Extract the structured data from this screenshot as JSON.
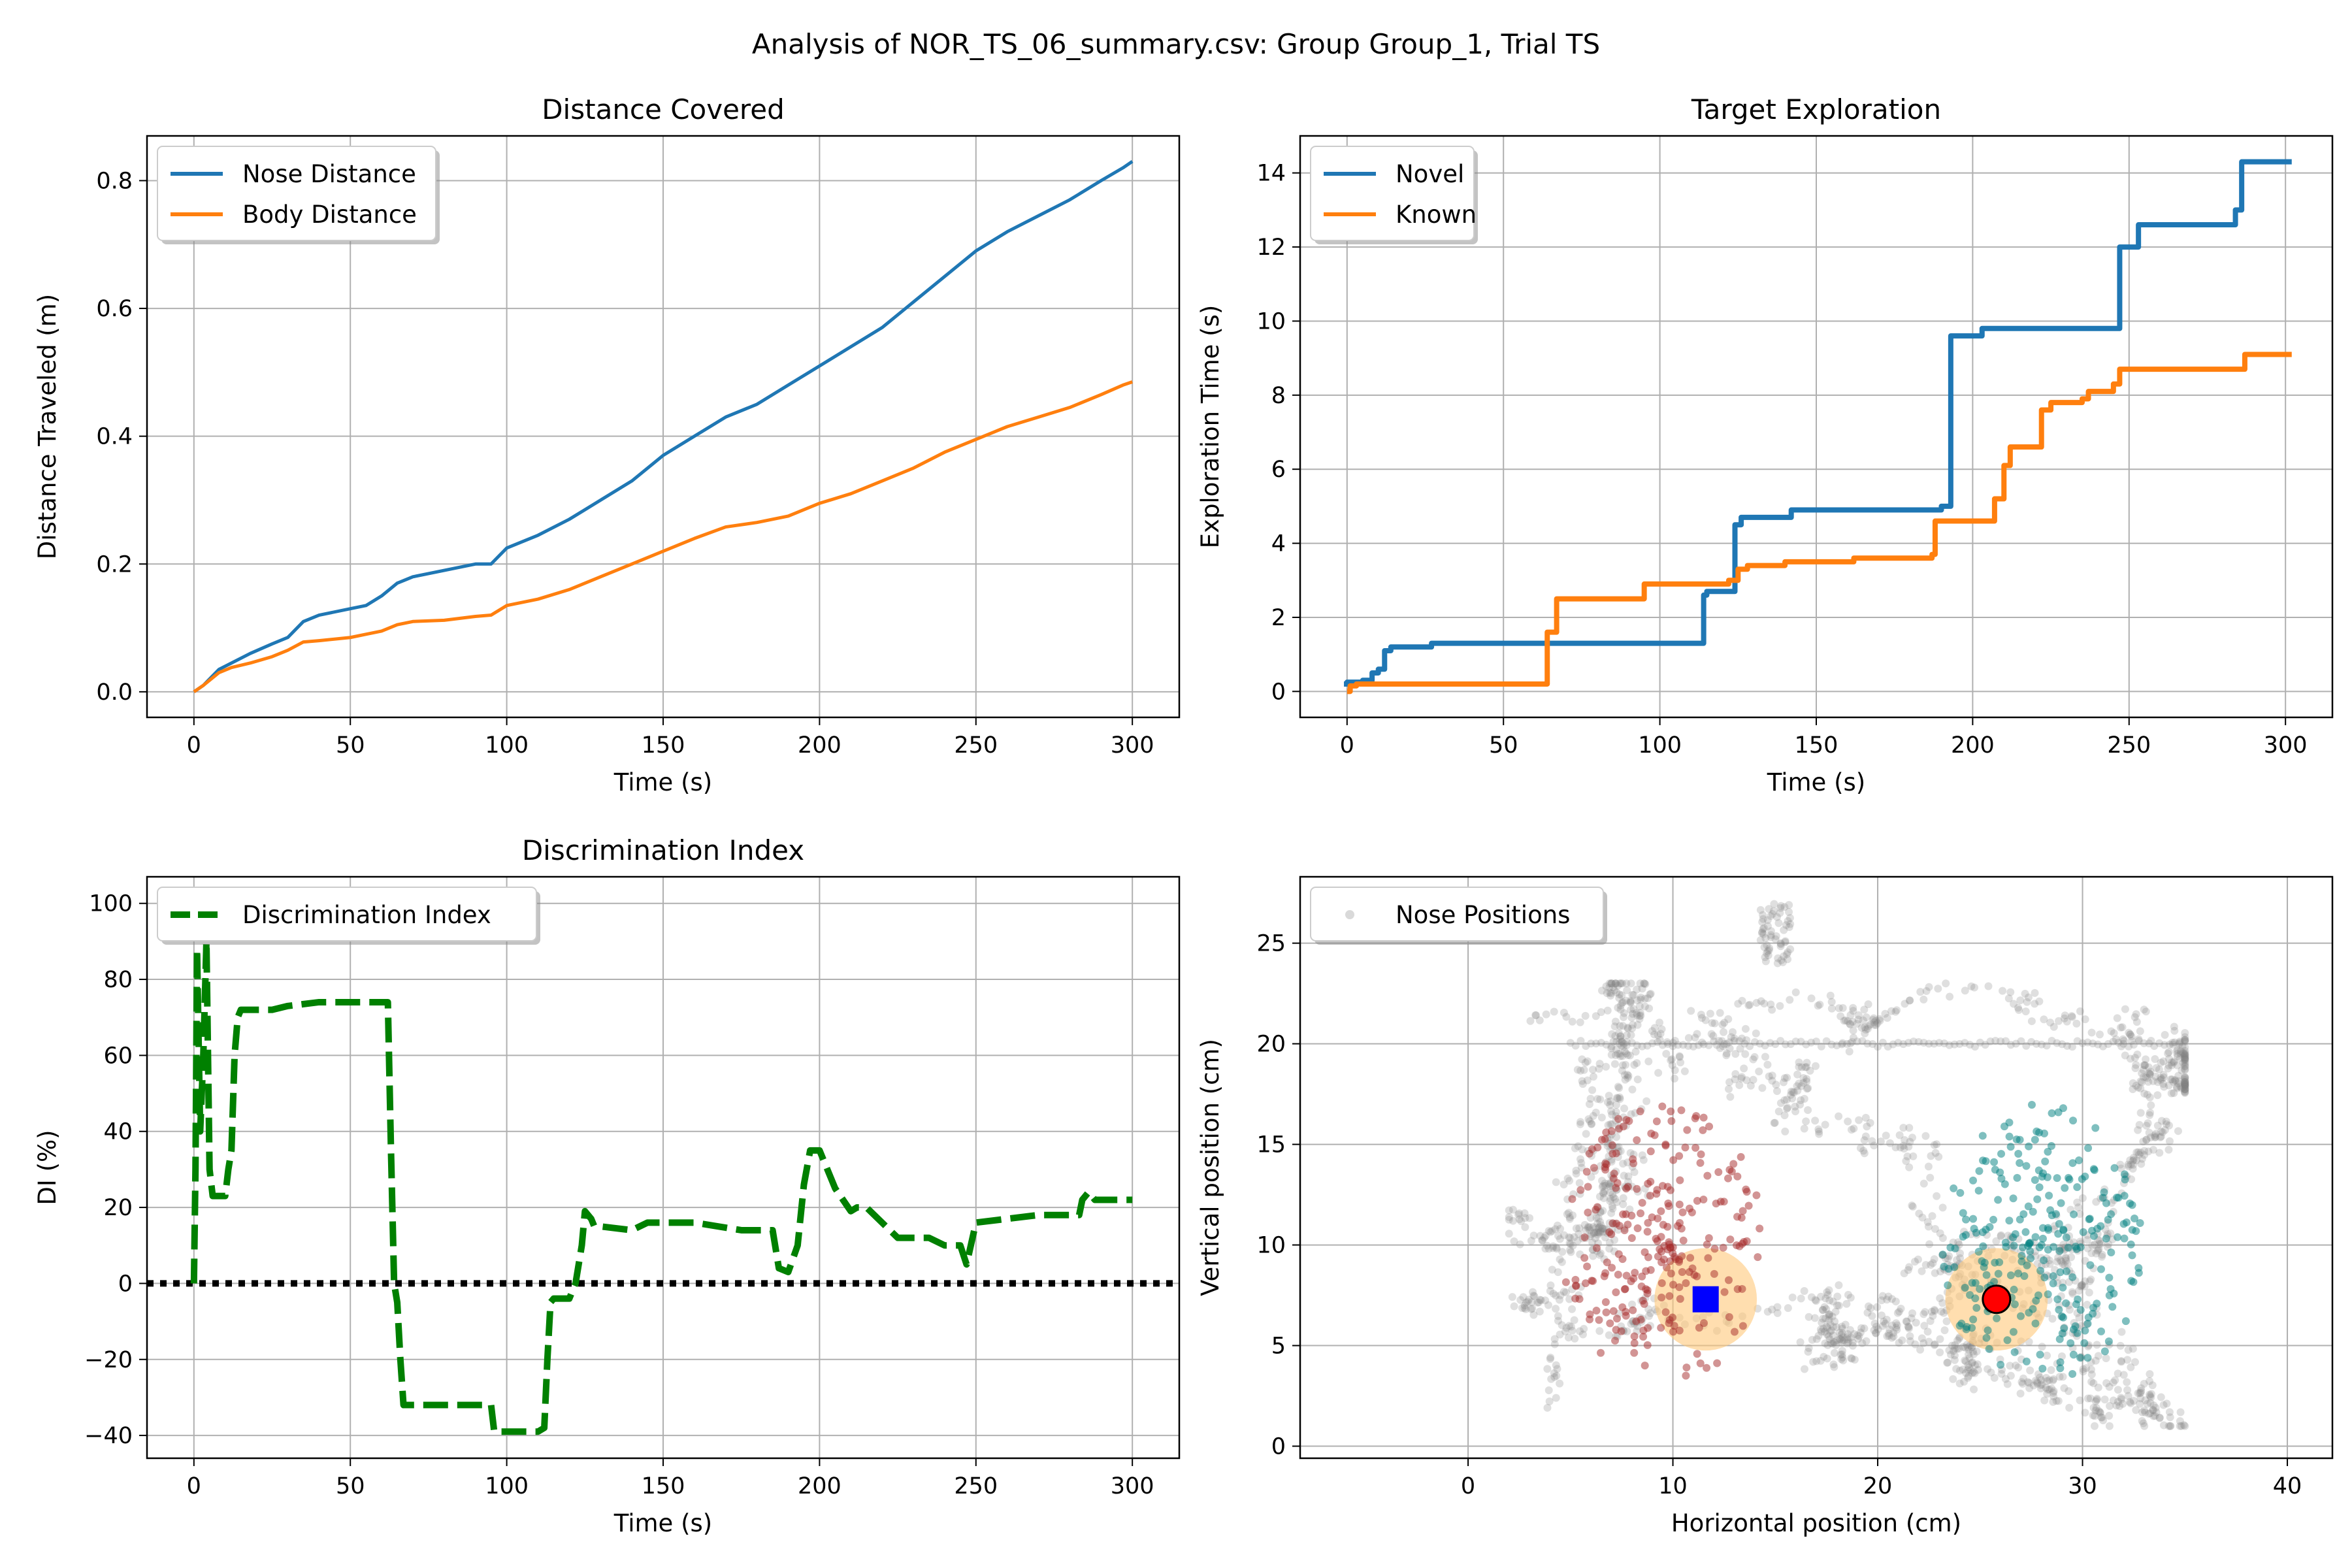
{
  "figure": {
    "suptitle": "Analysis of NOR_TS_06_summary.csv: Group Group_1, Trial TS"
  },
  "chart_data": [
    {
      "type": "line",
      "title": "Distance Covered",
      "xlabel": "Time (s)",
      "ylabel": "Distance Traveled (m)",
      "xlim": [
        -15,
        315
      ],
      "ylim": [
        -0.04,
        0.87
      ],
      "xticks": [
        0,
        50,
        100,
        150,
        200,
        250,
        300
      ],
      "yticks": [
        0.0,
        0.2,
        0.4,
        0.6,
        0.8
      ],
      "ytick_labels": [
        "0.0",
        "0.2",
        "0.4",
        "0.6",
        "0.8"
      ],
      "grid": true,
      "legend_position": "upper-left",
      "series": [
        {
          "name": "Nose Distance",
          "color": "#1f77b4",
          "x": [
            0,
            3,
            8,
            12,
            18,
            25,
            30,
            35,
            40,
            50,
            55,
            60,
            65,
            70,
            80,
            90,
            95,
            100,
            110,
            120,
            130,
            140,
            150,
            160,
            170,
            180,
            190,
            200,
            210,
            220,
            230,
            240,
            250,
            260,
            270,
            280,
            290,
            297,
            300
          ],
          "y": [
            0,
            0.01,
            0.035,
            0.045,
            0.06,
            0.075,
            0.085,
            0.11,
            0.12,
            0.13,
            0.135,
            0.15,
            0.17,
            0.18,
            0.19,
            0.2,
            0.2,
            0.225,
            0.245,
            0.27,
            0.3,
            0.33,
            0.37,
            0.4,
            0.43,
            0.45,
            0.48,
            0.51,
            0.54,
            0.57,
            0.61,
            0.65,
            0.69,
            0.72,
            0.745,
            0.77,
            0.8,
            0.82,
            0.83
          ]
        },
        {
          "name": "Body Distance",
          "color": "#ff7f0e",
          "x": [
            0,
            3,
            8,
            12,
            18,
            25,
            30,
            35,
            40,
            50,
            55,
            60,
            65,
            70,
            80,
            90,
            95,
            100,
            110,
            120,
            130,
            140,
            150,
            160,
            170,
            180,
            190,
            200,
            210,
            220,
            230,
            240,
            250,
            260,
            270,
            280,
            290,
            297,
            300
          ],
          "y": [
            0,
            0.01,
            0.03,
            0.038,
            0.045,
            0.055,
            0.065,
            0.078,
            0.08,
            0.085,
            0.09,
            0.095,
            0.105,
            0.11,
            0.112,
            0.118,
            0.12,
            0.135,
            0.145,
            0.16,
            0.18,
            0.2,
            0.22,
            0.24,
            0.258,
            0.265,
            0.275,
            0.295,
            0.31,
            0.33,
            0.35,
            0.375,
            0.395,
            0.415,
            0.43,
            0.445,
            0.465,
            0.48,
            0.485
          ]
        }
      ]
    },
    {
      "type": "line",
      "title": "Target Exploration",
      "xlabel": "Time (s)",
      "ylabel": "Exploration Time (s)",
      "xlim": [
        -15,
        315
      ],
      "ylim": [
        -0.7,
        15.0
      ],
      "xticks": [
        0,
        50,
        100,
        150,
        200,
        250,
        300
      ],
      "yticks": [
        0,
        2,
        4,
        6,
        8,
        10,
        12,
        14
      ],
      "ytick_labels": [
        "0",
        "2",
        "4",
        "6",
        "8",
        "10",
        "12",
        "14"
      ],
      "grid": true,
      "legend_position": "upper-left",
      "series": [
        {
          "name": "Novel",
          "color": "#1f77b4",
          "x": [
            -1,
            0,
            5,
            8,
            10,
            12,
            14,
            25,
            27,
            60,
            62,
            112,
            114,
            115,
            122,
            124,
            126,
            140,
            142,
            188,
            190,
            193,
            196,
            200,
            203,
            245,
            247,
            250,
            253,
            282,
            284,
            286,
            302
          ],
          "y": [
            0.2,
            0.25,
            0.3,
            0.5,
            0.6,
            1.1,
            1.2,
            1.2,
            1.3,
            1.3,
            1.3,
            1.3,
            2.6,
            2.7,
            2.7,
            4.5,
            4.7,
            4.7,
            4.9,
            4.9,
            5.0,
            9.6,
            9.6,
            9.6,
            9.8,
            9.8,
            12.0,
            12.0,
            12.6,
            12.6,
            13.0,
            14.3,
            14.3
          ]
        },
        {
          "name": "Known",
          "color": "#ff7f0e",
          "x": [
            0,
            1,
            3,
            62,
            64,
            67,
            70,
            93,
            95,
            100,
            110,
            122,
            125,
            128,
            133,
            140,
            160,
            162,
            170,
            187,
            188,
            205,
            207,
            210,
            212,
            220,
            222,
            225,
            235,
            237,
            245,
            247,
            285,
            287,
            302
          ],
          "y": [
            0.0,
            0.15,
            0.2,
            0.2,
            1.6,
            2.5,
            2.5,
            2.5,
            2.9,
            2.9,
            2.9,
            3.0,
            3.3,
            3.4,
            3.4,
            3.5,
            3.5,
            3.6,
            3.6,
            3.7,
            4.6,
            4.6,
            5.2,
            6.1,
            6.6,
            6.6,
            7.6,
            7.8,
            7.9,
            8.1,
            8.3,
            8.7,
            8.7,
            9.1,
            9.1
          ]
        }
      ]
    },
    {
      "type": "line",
      "title": "Discrimination Index",
      "xlabel": "Time (s)",
      "ylabel": "DI (%)",
      "xlim": [
        -15,
        315
      ],
      "ylim": [
        -46,
        107
      ],
      "xticks": [
        0,
        50,
        100,
        150,
        200,
        250,
        300
      ],
      "yticks": [
        -40,
        -20,
        0,
        20,
        40,
        60,
        80,
        100
      ],
      "ytick_labels": [
        "−40",
        "−20",
        "0",
        "20",
        "40",
        "60",
        "80",
        "100"
      ],
      "grid": true,
      "legend_position": "upper-left",
      "reference_line": {
        "y": 0,
        "style": "dotted",
        "color": "#000000"
      },
      "series": [
        {
          "name": "Discrimination Index",
          "color": "#008000",
          "style": "dashed",
          "x": [
            0,
            0.5,
            1,
            2,
            3,
            4,
            5,
            6,
            10,
            11,
            12,
            13,
            14,
            15,
            25,
            30,
            40,
            62,
            63,
            64,
            65,
            66,
            67,
            80,
            95,
            96,
            100,
            110,
            112,
            113,
            114,
            115,
            120,
            122,
            123,
            124,
            125,
            127,
            128,
            130,
            140,
            145,
            160,
            175,
            185,
            187,
            190,
            193,
            195,
            197,
            200,
            205,
            210,
            212,
            215,
            225,
            235,
            240,
            245,
            247,
            250,
            260,
            270,
            283,
            284,
            286,
            288,
            300
          ],
          "y": [
            0,
            30,
            88,
            40,
            60,
            90,
            30,
            23,
            23,
            30,
            35,
            60,
            70,
            72,
            72,
            73,
            74,
            74,
            35,
            0,
            -5,
            -20,
            -32,
            -32,
            -32,
            -39,
            -39,
            -39,
            -38,
            -20,
            -5,
            -4,
            -4,
            0,
            5,
            10,
            19,
            17,
            15,
            15,
            14,
            16,
            16,
            14,
            14,
            4,
            3,
            10,
            26,
            35,
            35,
            25,
            19,
            20,
            20,
            12,
            12,
            10,
            10,
            5,
            16,
            17,
            18,
            18,
            22,
            24,
            22,
            22
          ]
        }
      ]
    },
    {
      "type": "scatter",
      "title": "",
      "xlabel": "Horizontal position (cm)",
      "ylabel": "Vertical position (cm)",
      "xlim": [
        -8.2,
        42.2
      ],
      "ylim": [
        -0.6,
        28.3
      ],
      "xticks": [
        0,
        10,
        20,
        30,
        40
      ],
      "yticks": [
        0,
        5,
        10,
        15,
        20,
        25
      ],
      "ytick_labels": [
        "0",
        "5",
        "10",
        "15",
        "20",
        "25"
      ],
      "grid": true,
      "legend_position": "upper-left",
      "series": [
        {
          "name": "Nose Positions",
          "color": "#808080"
        }
      ],
      "targets": [
        {
          "marker": "square",
          "color": "#0000ff",
          "x": 11.6,
          "y": 7.3,
          "zone_radius": 2.5,
          "zone_color": "#ffc87a"
        },
        {
          "marker": "circle",
          "color": "#ff0000",
          "x": 25.8,
          "y": 7.3,
          "zone_radius": 2.5,
          "zone_color": "#ffc87a"
        }
      ],
      "exploration_colors": {
        "near_square": "#a52a2a",
        "near_circle": "#008080"
      }
    }
  ]
}
